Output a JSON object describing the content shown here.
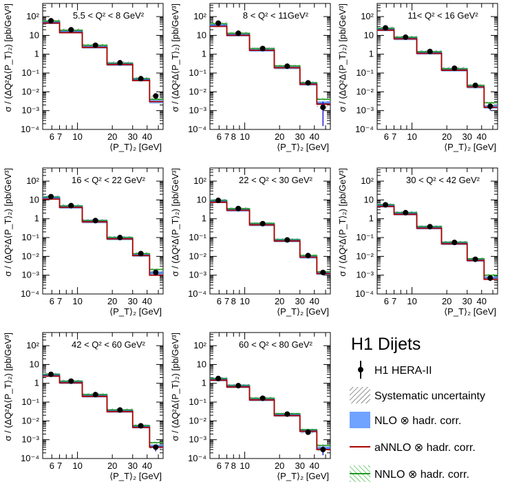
{
  "legend": {
    "title": "H1 Dijets",
    "entries": [
      {
        "key": "data",
        "label": "H1 HERA-II"
      },
      {
        "key": "syst",
        "label": "Systematic uncertainty"
      },
      {
        "key": "nlo",
        "label": "NLO ⊗ hadr. corr."
      },
      {
        "key": "annlo",
        "label": "aNNLO ⊗ hadr. corr."
      },
      {
        "key": "nnlo",
        "label": "NNLO ⊗ hadr. corr."
      }
    ]
  },
  "colors": {
    "nlo": "#6fa3ff",
    "annlo": "#aa0000",
    "nnlo": "#229922",
    "syst": "#555555",
    "data": "#000000",
    "data_err": "#0000cc"
  },
  "chart_data": {
    "type": "step-histogram",
    "yscale": "log",
    "xscale": "log",
    "ylim": [
      0.0001,
      500
    ],
    "xlim": [
      5,
      55
    ],
    "ylabel": "σ / (ΔQ²Δ⟨P_T⟩₂) [pb/GeV³]",
    "xlabel": "⟨P_T⟩₂ [GeV]",
    "bin_edges": [
      5,
      7,
      11,
      18,
      30,
      42,
      55
    ],
    "bin_centers": [
      5.9,
      8.8,
      14.3,
      23.3,
      35.3,
      47.5
    ],
    "panels": [
      {
        "label": "5.5 < Q² < 8 GeV²",
        "xticks": [
          "6",
          "7",
          "10",
          "20",
          "30",
          "40"
        ],
        "xtick_values": [
          6,
          7,
          10,
          20,
          30,
          40
        ],
        "data": [
          60,
          20,
          3.0,
          0.35,
          0.05,
          0.006
        ],
        "data_err_rel": [
          0.15,
          0.15,
          0.15,
          0.15,
          0.2,
          0.3
        ],
        "nlo": [
          50,
          16,
          2.5,
          0.3,
          0.045,
          0.003
        ],
        "annlo": [
          45,
          14,
          2.3,
          0.28,
          0.04,
          0.003
        ],
        "nnlo": [
          58,
          19,
          3.0,
          0.33,
          0.05,
          0.004
        ]
      },
      {
        "label": "8 < Q² < 11GeV²",
        "xticks": [
          "6",
          "7",
          "8",
          "10",
          "20",
          "30",
          "40"
        ],
        "xtick_values": [
          6,
          7,
          8,
          10,
          20,
          30,
          40
        ],
        "data": [
          45,
          13,
          2.0,
          0.23,
          0.03,
          0.0015
        ],
        "data_err_rel": [
          0.15,
          0.15,
          0.15,
          0.15,
          0.2,
          1.0
        ],
        "nlo": [
          35,
          11,
          1.7,
          0.2,
          0.027,
          0.0025
        ],
        "annlo": [
          30,
          10,
          1.6,
          0.19,
          0.025,
          0.0022
        ],
        "nnlo": [
          42,
          13,
          2.0,
          0.24,
          0.03,
          0.004
        ]
      },
      {
        "label": "11< Q² < 16 GeV²",
        "xticks": [
          "6",
          "7",
          "10",
          "20",
          "30",
          "40"
        ],
        "xtick_values": [
          6,
          7,
          10,
          20,
          30,
          40
        ],
        "data": [
          25,
          8,
          1.4,
          0.18,
          0.022,
          0.0017
        ],
        "data_err_rel": [
          0.15,
          0.15,
          0.15,
          0.15,
          0.2,
          0.4
        ],
        "nlo": [
          21,
          7,
          1.2,
          0.15,
          0.019,
          0.0016
        ],
        "annlo": [
          19,
          6.5,
          1.1,
          0.14,
          0.018,
          0.0015
        ],
        "nnlo": [
          24,
          8,
          1.35,
          0.17,
          0.022,
          0.0026
        ]
      },
      {
        "label": "16 < Q² < 22 GeV²",
        "xticks": [
          "6",
          "7",
          "10",
          "20",
          "30",
          "40"
        ],
        "xtick_values": [
          6,
          7,
          10,
          20,
          30,
          40
        ],
        "data": [
          15,
          5,
          0.8,
          0.1,
          0.014,
          0.0014
        ],
        "data_err_rel": [
          0.15,
          0.15,
          0.15,
          0.15,
          0.2,
          0.3
        ],
        "nlo": [
          13,
          4.3,
          0.72,
          0.09,
          0.012,
          0.0013
        ],
        "annlo": [
          11,
          4.0,
          0.68,
          0.085,
          0.011,
          0.001
        ],
        "nnlo": [
          14,
          4.8,
          0.8,
          0.1,
          0.014,
          0.002
        ]
      },
      {
        "label": "22 < Q² < 30 GeV²",
        "xticks": [
          "6",
          "7",
          "8",
          "10",
          "20",
          "30",
          "40"
        ],
        "xtick_values": [
          6,
          7,
          8,
          10,
          20,
          30,
          40
        ],
        "data": [
          9.5,
          3.5,
          0.55,
          0.075,
          0.011,
          0.0014
        ],
        "data_err_rel": [
          0.15,
          0.15,
          0.15,
          0.15,
          0.2,
          0.3
        ],
        "nlo": [
          8.5,
          3.0,
          0.5,
          0.07,
          0.0095,
          0.0013
        ],
        "annlo": [
          7.5,
          2.8,
          0.47,
          0.065,
          0.009,
          0.0012
        ],
        "nnlo": [
          9.5,
          3.4,
          0.56,
          0.077,
          0.011,
          0.0015
        ]
      },
      {
        "label": "30 < Q² < 42 GeV²",
        "xticks": [
          "6",
          "7",
          "10",
          "20",
          "30",
          "40"
        ],
        "xtick_values": [
          6,
          7,
          10,
          20,
          30,
          40
        ],
        "data": [
          5.5,
          2.1,
          0.38,
          0.055,
          0.007,
          0.0007
        ],
        "data_err_rel": [
          0.15,
          0.15,
          0.15,
          0.15,
          0.2,
          0.3
        ],
        "nlo": [
          5.0,
          1.9,
          0.34,
          0.05,
          0.0065,
          0.0007
        ],
        "annlo": [
          4.5,
          1.7,
          0.31,
          0.046,
          0.006,
          0.0006
        ],
        "nnlo": [
          5.5,
          2.1,
          0.38,
          0.056,
          0.0075,
          0.001
        ]
      },
      {
        "label": "42 < Q² < 60 GeV²",
        "xticks": [
          "6",
          "7",
          "10",
          "20",
          "30",
          "40"
        ],
        "xtick_values": [
          6,
          7,
          10,
          20,
          30,
          40
        ],
        "data": [
          3.0,
          1.3,
          0.25,
          0.038,
          0.0055,
          0.0004
        ],
        "data_err_rel": [
          0.15,
          0.15,
          0.15,
          0.15,
          0.2,
          0.4
        ],
        "nlo": [
          2.7,
          1.15,
          0.22,
          0.034,
          0.005,
          0.00045
        ],
        "annlo": [
          2.4,
          1.05,
          0.2,
          0.031,
          0.0045,
          0.0004
        ],
        "nnlo": [
          3.0,
          1.3,
          0.25,
          0.038,
          0.0056,
          0.0007
        ]
      },
      {
        "label": "60 < Q² < 80 GeV²",
        "xticks": [
          "6",
          "7",
          "8",
          "10",
          "20",
          "30",
          "40"
        ],
        "xtick_values": [
          6,
          7,
          8,
          10,
          20,
          30,
          40
        ],
        "data": [
          1.8,
          0.75,
          0.16,
          0.023,
          0.0025,
          0.0003
        ],
        "data_err_rel": [
          0.15,
          0.15,
          0.15,
          0.15,
          0.2,
          0.5
        ],
        "nlo": [
          1.6,
          0.7,
          0.14,
          0.021,
          0.003,
          0.00035
        ],
        "annlo": [
          1.45,
          0.63,
          0.13,
          0.019,
          0.0028,
          0.0003
        ],
        "nnlo": [
          1.8,
          0.76,
          0.16,
          0.024,
          0.0034,
          0.0005
        ]
      }
    ],
    "yticks": [
      "10⁻⁴",
      "10⁻³",
      "10⁻²",
      "10⁻¹",
      "1",
      "10",
      "10²"
    ],
    "ytick_values": [
      0.0001,
      0.001,
      0.01,
      0.1,
      1,
      10,
      100
    ]
  }
}
